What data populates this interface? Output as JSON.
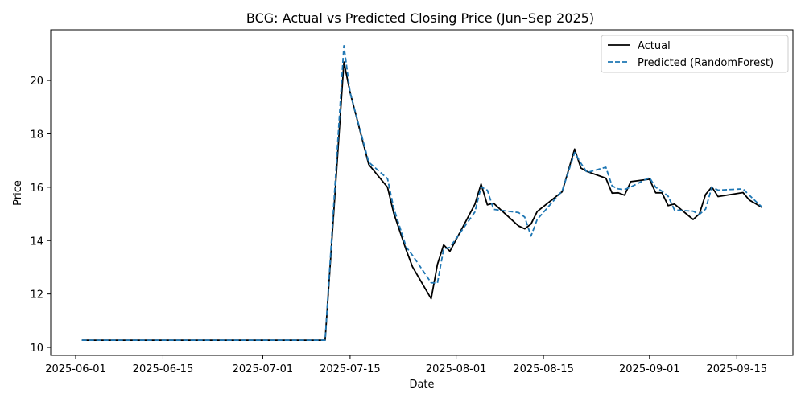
{
  "chart_data": {
    "type": "line",
    "title": "BCG: Actual vs Predicted Closing Price (Jun–Sep 2025)",
    "xlabel": "Date",
    "ylabel": "Price",
    "xlim": [
      "2025-05-28",
      "2025-09-24"
    ],
    "ylim": [
      9.7,
      21.9
    ],
    "x_ticks": [
      "2025-06-01",
      "2025-06-15",
      "2025-07-01",
      "2025-07-15",
      "2025-08-01",
      "2025-08-15",
      "2025-09-01",
      "2025-09-15"
    ],
    "y_ticks": [
      10,
      12,
      14,
      16,
      18,
      20
    ],
    "grid": false,
    "legend_position": "top-right",
    "series": [
      {
        "name": "Actual",
        "color": "#000000",
        "style": "solid",
        "points": [
          [
            "2025-06-02",
            10.27
          ],
          [
            "2025-07-11",
            10.27
          ],
          [
            "2025-07-14",
            20.69
          ],
          [
            "2025-07-15",
            19.55
          ],
          [
            "2025-07-18",
            16.85
          ],
          [
            "2025-07-21",
            16.0
          ],
          [
            "2025-07-22",
            15.03
          ],
          [
            "2025-07-24",
            13.65
          ],
          [
            "2025-07-25",
            13.02
          ],
          [
            "2025-07-28",
            11.82
          ],
          [
            "2025-07-29",
            13.11
          ],
          [
            "2025-07-30",
            13.84
          ],
          [
            "2025-07-31",
            13.6
          ],
          [
            "2025-08-04",
            15.36
          ],
          [
            "2025-08-05",
            16.12
          ],
          [
            "2025-08-06",
            15.34
          ],
          [
            "2025-08-07",
            15.4
          ],
          [
            "2025-08-11",
            14.55
          ],
          [
            "2025-08-12",
            14.44
          ],
          [
            "2025-08-13",
            14.62
          ],
          [
            "2025-08-14",
            15.09
          ],
          [
            "2025-08-18",
            15.83
          ],
          [
            "2025-08-20",
            17.43
          ],
          [
            "2025-08-21",
            16.72
          ],
          [
            "2025-08-22",
            16.59
          ],
          [
            "2025-08-25",
            16.34
          ],
          [
            "2025-08-26",
            15.78
          ],
          [
            "2025-08-27",
            15.79
          ],
          [
            "2025-08-28",
            15.7
          ],
          [
            "2025-08-29",
            16.21
          ],
          [
            "2025-09-01",
            16.3
          ],
          [
            "2025-09-02",
            15.79
          ],
          [
            "2025-09-03",
            15.79
          ],
          [
            "2025-09-04",
            15.31
          ],
          [
            "2025-09-05",
            15.37
          ],
          [
            "2025-09-08",
            14.79
          ],
          [
            "2025-09-09",
            15.0
          ],
          [
            "2025-09-10",
            15.73
          ],
          [
            "2025-09-11",
            16.01
          ],
          [
            "2025-09-12",
            15.65
          ],
          [
            "2025-09-16",
            15.8
          ],
          [
            "2025-09-17",
            15.52
          ],
          [
            "2025-09-19",
            15.25
          ]
        ]
      },
      {
        "name": "Predicted (RandomForest)",
        "color": "#1f77b4",
        "style": "dashed",
        "points": [
          [
            "2025-06-02",
            10.27
          ],
          [
            "2025-07-11",
            10.27
          ],
          [
            "2025-07-14",
            21.3
          ],
          [
            "2025-07-15",
            19.55
          ],
          [
            "2025-07-18",
            16.94
          ],
          [
            "2025-07-21",
            16.32
          ],
          [
            "2025-07-22",
            15.22
          ],
          [
            "2025-07-24",
            13.76
          ],
          [
            "2025-07-25",
            13.45
          ],
          [
            "2025-07-28",
            12.42
          ],
          [
            "2025-07-29",
            12.41
          ],
          [
            "2025-07-30",
            13.68
          ],
          [
            "2025-07-31",
            13.75
          ],
          [
            "2025-08-04",
            15.07
          ],
          [
            "2025-08-05",
            16.01
          ],
          [
            "2025-08-06",
            15.89
          ],
          [
            "2025-08-07",
            15.17
          ],
          [
            "2025-08-11",
            15.05
          ],
          [
            "2025-08-12",
            14.88
          ],
          [
            "2025-08-13",
            14.17
          ],
          [
            "2025-08-14",
            14.79
          ],
          [
            "2025-08-18",
            15.86
          ],
          [
            "2025-08-20",
            17.3
          ],
          [
            "2025-08-21",
            16.9
          ],
          [
            "2025-08-22",
            16.55
          ],
          [
            "2025-08-25",
            16.75
          ],
          [
            "2025-08-26",
            16.05
          ],
          [
            "2025-08-27",
            15.94
          ],
          [
            "2025-08-28",
            15.91
          ],
          [
            "2025-08-29",
            16.01
          ],
          [
            "2025-09-01",
            16.36
          ],
          [
            "2025-09-02",
            16.0
          ],
          [
            "2025-09-03",
            15.85
          ],
          [
            "2025-09-04",
            15.66
          ],
          [
            "2025-09-05",
            15.15
          ],
          [
            "2025-09-08",
            15.1
          ],
          [
            "2025-09-09",
            14.98
          ],
          [
            "2025-09-10",
            15.18
          ],
          [
            "2025-09-11",
            16.01
          ],
          [
            "2025-09-12",
            15.89
          ],
          [
            "2025-09-16",
            15.94
          ],
          [
            "2025-09-17",
            15.7
          ],
          [
            "2025-09-19",
            15.26
          ]
        ]
      }
    ]
  }
}
